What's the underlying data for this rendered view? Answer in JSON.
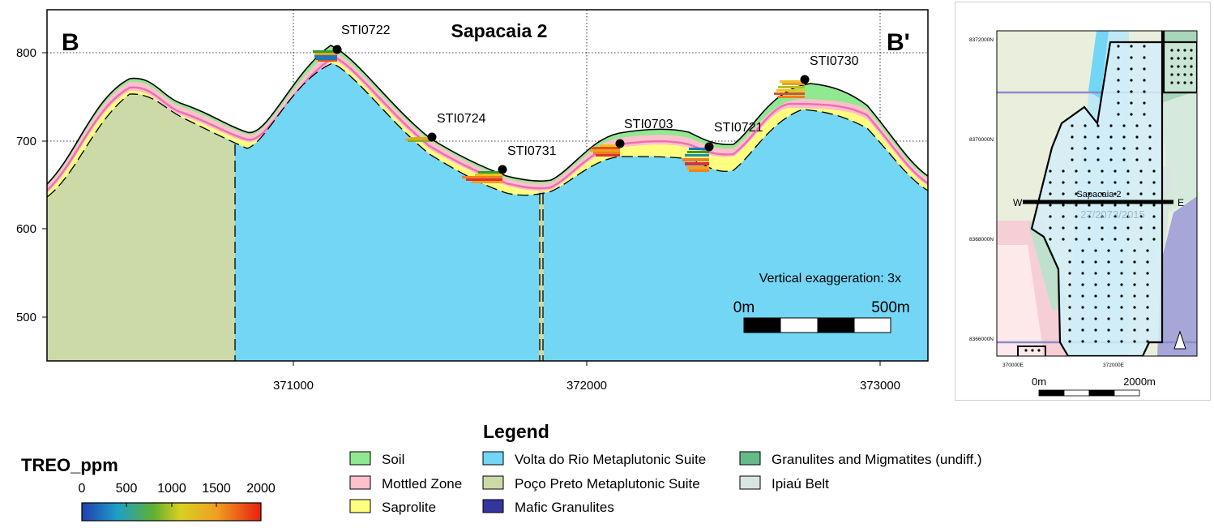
{
  "section": {
    "title": "Sapacaia 2",
    "start_label": "B",
    "end_label": "B'",
    "y_ticks": [
      "800",
      "700",
      "600",
      "500"
    ],
    "x_ticks": [
      "371000",
      "372000",
      "373000"
    ],
    "drillholes": [
      {
        "id": "STI0722"
      },
      {
        "id": "STI0724"
      },
      {
        "id": "STI0731"
      },
      {
        "id": "STI0703"
      },
      {
        "id": "STI0721"
      },
      {
        "id": "STI0730"
      }
    ],
    "exaggeration": "Vertical exaggeration: 3x",
    "scale_start": "0m",
    "scale_end": "500m"
  },
  "map": {
    "y_ticks": [
      "8372000N",
      "8370000N",
      "8368000N",
      "8366000N"
    ],
    "x_ticks": [
      "370000E",
      "372000E"
    ],
    "west": "W",
    "east": "E",
    "section_label": "Sapacaia 2",
    "watermark": "27/2073/2015",
    "scale_start": "0m",
    "scale_end": "2000m"
  },
  "legend": {
    "title": "Legend",
    "items": [
      {
        "label": "Soil",
        "color": "#90e890"
      },
      {
        "label": "Mottled Zone",
        "color": "#ffc0cb"
      },
      {
        "label": "Saprolite",
        "color": "#ffff80"
      },
      {
        "label": "Volta do Rio Metaplutonic Suite",
        "color": "#72d6f4"
      },
      {
        "label": "Poço Preto Metaplutonic Suite",
        "color": "#cbdaa6"
      },
      {
        "label": "Mafic Granulites",
        "color": "#3535a0"
      },
      {
        "label": "Granulites and Migmatites (undiff.)",
        "color": "#68b98a"
      },
      {
        "label": "Ipiaú Belt",
        "color": "#d8e6df"
      }
    ]
  },
  "colorbar": {
    "title": "TREO_ppm",
    "ticks": [
      "0",
      "500",
      "1000",
      "1500",
      "2000"
    ]
  }
}
